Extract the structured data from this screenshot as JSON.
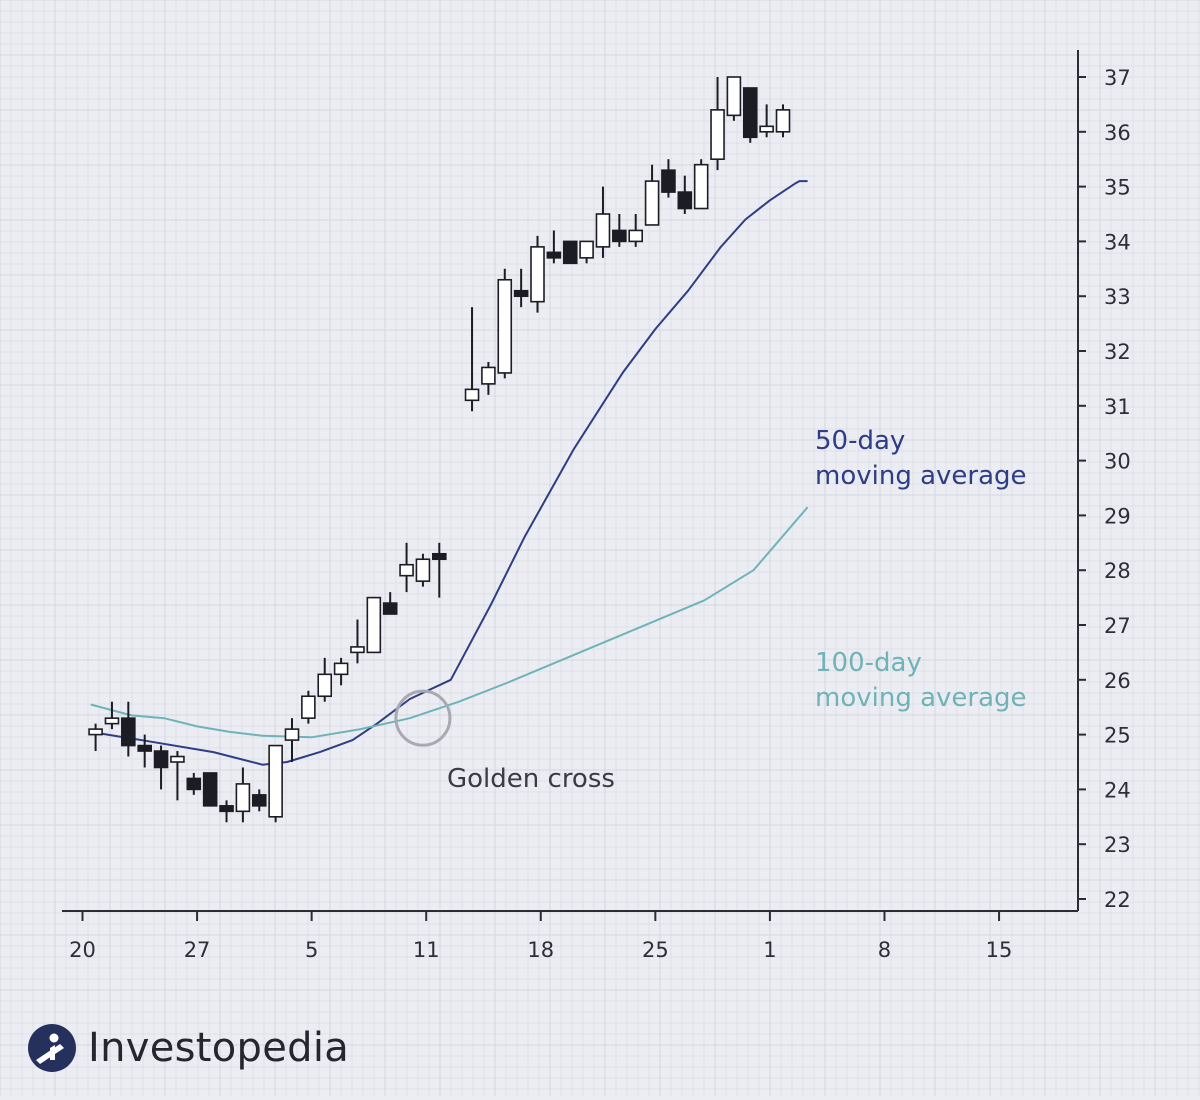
{
  "chart_data": {
    "type": "candlestick",
    "x_ticks": [
      "20",
      "27",
      "5",
      "11",
      "18",
      "25",
      "1",
      "8",
      "15"
    ],
    "y_ticks": [
      22,
      23,
      24,
      25,
      26,
      27,
      28,
      29,
      30,
      31,
      32,
      33,
      34,
      35,
      36,
      37
    ],
    "ylim": [
      21.8,
      37.4
    ],
    "grid": true,
    "candles": [
      {
        "d": 0.8,
        "o": 25.0,
        "h": 25.2,
        "l": 24.7,
        "c": 25.1
      },
      {
        "d": 1.8,
        "o": 25.2,
        "h": 25.6,
        "l": 25.1,
        "c": 25.3
      },
      {
        "d": 2.8,
        "o": 25.3,
        "h": 25.6,
        "l": 24.6,
        "c": 24.8
      },
      {
        "d": 3.8,
        "o": 24.8,
        "h": 25.0,
        "l": 24.4,
        "c": 24.7
      },
      {
        "d": 4.8,
        "o": 24.7,
        "h": 24.8,
        "l": 24.0,
        "c": 24.4
      },
      {
        "d": 5.8,
        "o": 24.5,
        "h": 24.7,
        "l": 23.8,
        "c": 24.6
      },
      {
        "d": 6.8,
        "o": 24.2,
        "h": 24.3,
        "l": 23.9,
        "c": 24.0
      },
      {
        "d": 7.8,
        "o": 24.3,
        "h": 24.3,
        "l": 23.7,
        "c": 23.7
      },
      {
        "d": 8.8,
        "o": 23.7,
        "h": 23.8,
        "l": 23.4,
        "c": 23.6
      },
      {
        "d": 9.8,
        "o": 23.6,
        "h": 24.4,
        "l": 23.4,
        "c": 24.1
      },
      {
        "d": 10.8,
        "o": 23.9,
        "h": 24.0,
        "l": 23.6,
        "c": 23.7
      },
      {
        "d": 11.8,
        "o": 23.5,
        "h": 24.8,
        "l": 23.4,
        "c": 24.8
      },
      {
        "d": 12.8,
        "o": 24.9,
        "h": 25.3,
        "l": 24.5,
        "c": 25.1
      },
      {
        "d": 13.8,
        "o": 25.3,
        "h": 25.8,
        "l": 25.2,
        "c": 25.7
      },
      {
        "d": 14.8,
        "o": 25.7,
        "h": 26.4,
        "l": 25.6,
        "c": 26.1
      },
      {
        "d": 15.8,
        "o": 26.1,
        "h": 26.4,
        "l": 25.9,
        "c": 26.3
      },
      {
        "d": 16.8,
        "o": 26.5,
        "h": 27.1,
        "l": 26.3,
        "c": 26.6
      },
      {
        "d": 17.8,
        "o": 26.5,
        "h": 27.5,
        "l": 26.5,
        "c": 27.5
      },
      {
        "d": 18.8,
        "o": 27.4,
        "h": 27.6,
        "l": 27.2,
        "c": 27.2
      },
      {
        "d": 19.8,
        "o": 27.9,
        "h": 28.5,
        "l": 27.6,
        "c": 28.1
      },
      {
        "d": 20.8,
        "o": 27.8,
        "h": 28.3,
        "l": 27.7,
        "c": 28.2
      },
      {
        "d": 21.8,
        "o": 28.3,
        "h": 28.5,
        "l": 27.5,
        "c": 28.2
      },
      {
        "d": 23.8,
        "o": 31.1,
        "h": 32.8,
        "l": 30.9,
        "c": 31.3
      },
      {
        "d": 24.8,
        "o": 31.4,
        "h": 31.8,
        "l": 31.2,
        "c": 31.7
      },
      {
        "d": 25.8,
        "o": 31.6,
        "h": 33.5,
        "l": 31.5,
        "c": 33.3
      },
      {
        "d": 26.8,
        "o": 33.1,
        "h": 33.5,
        "l": 32.8,
        "c": 33.0
      },
      {
        "d": 27.8,
        "o": 32.9,
        "h": 34.1,
        "l": 32.7,
        "c": 33.9
      },
      {
        "d": 28.8,
        "o": 33.8,
        "h": 34.2,
        "l": 33.6,
        "c": 33.7
      },
      {
        "d": 29.8,
        "o": 34.0,
        "h": 34.0,
        "l": 33.6,
        "c": 33.6
      },
      {
        "d": 30.8,
        "o": 33.7,
        "h": 34.0,
        "l": 33.6,
        "c": 34.0
      },
      {
        "d": 31.8,
        "o": 33.9,
        "h": 35.0,
        "l": 33.7,
        "c": 34.5
      },
      {
        "d": 32.8,
        "o": 34.2,
        "h": 34.5,
        "l": 33.9,
        "c": 34.0
      },
      {
        "d": 33.8,
        "o": 34.0,
        "h": 34.5,
        "l": 33.9,
        "c": 34.2
      },
      {
        "d": 34.8,
        "o": 34.3,
        "h": 35.4,
        "l": 34.3,
        "c": 35.1
      },
      {
        "d": 35.8,
        "o": 35.3,
        "h": 35.5,
        "l": 34.8,
        "c": 34.9
      },
      {
        "d": 36.8,
        "o": 34.9,
        "h": 35.2,
        "l": 34.5,
        "c": 34.6
      },
      {
        "d": 37.8,
        "o": 34.6,
        "h": 35.5,
        "l": 34.6,
        "c": 35.4
      },
      {
        "d": 38.8,
        "o": 35.5,
        "h": 37.0,
        "l": 35.3,
        "c": 36.4
      },
      {
        "d": 39.8,
        "o": 36.3,
        "h": 37.0,
        "l": 36.2,
        "c": 37.0
      },
      {
        "d": 40.8,
        "o": 36.8,
        "h": 36.8,
        "l": 35.8,
        "c": 35.9
      },
      {
        "d": 41.8,
        "o": 36.0,
        "h": 36.5,
        "l": 35.9,
        "c": 36.1
      },
      {
        "d": 42.8,
        "o": 36.0,
        "h": 36.5,
        "l": 35.9,
        "c": 36.4
      }
    ],
    "series": [
      {
        "name": "50-day moving average",
        "color": "#2e3d84",
        "points": [
          [
            0.5,
            25.05
          ],
          [
            4,
            24.88
          ],
          [
            8,
            24.68
          ],
          [
            11,
            24.45
          ],
          [
            12.5,
            24.5
          ],
          [
            14.5,
            24.68
          ],
          [
            16.5,
            24.9
          ],
          [
            18,
            25.2
          ],
          [
            20,
            25.65
          ],
          [
            22.5,
            26.0
          ],
          [
            25,
            27.4
          ],
          [
            27,
            28.6
          ],
          [
            30,
            30.2
          ],
          [
            33,
            31.6
          ],
          [
            35,
            32.4
          ],
          [
            37,
            33.1
          ],
          [
            39,
            33.9
          ],
          [
            40.5,
            34.4
          ],
          [
            42,
            34.75
          ],
          [
            43.5,
            35.05
          ],
          [
            43.8,
            35.1
          ],
          [
            44.3,
            35.1
          ]
        ]
      },
      {
        "name": "100-day moving average",
        "color": "#6fb3b7",
        "points": [
          [
            0.5,
            25.55
          ],
          [
            3,
            25.35
          ],
          [
            5,
            25.3
          ],
          [
            7,
            25.15
          ],
          [
            9,
            25.05
          ],
          [
            11,
            24.98
          ],
          [
            14,
            24.95
          ],
          [
            17,
            25.1
          ],
          [
            20,
            25.3
          ],
          [
            23,
            25.6
          ],
          [
            26,
            25.95
          ],
          [
            30,
            26.45
          ],
          [
            34,
            26.95
          ],
          [
            38,
            27.45
          ],
          [
            41,
            28.0
          ],
          [
            44.3,
            29.15
          ]
        ]
      }
    ],
    "annotations": {
      "ma50_label_line1": "50-day",
      "ma50_label_line2": "moving average",
      "ma100_label_line1": "100-day",
      "ma100_label_line2": "moving average",
      "cross_label": "Golden cross",
      "cross_point": {
        "d": 20.8,
        "v": 25.3
      }
    }
  },
  "brand": {
    "name": "Investopedia",
    "icon": "investopedia-logo-icon"
  }
}
